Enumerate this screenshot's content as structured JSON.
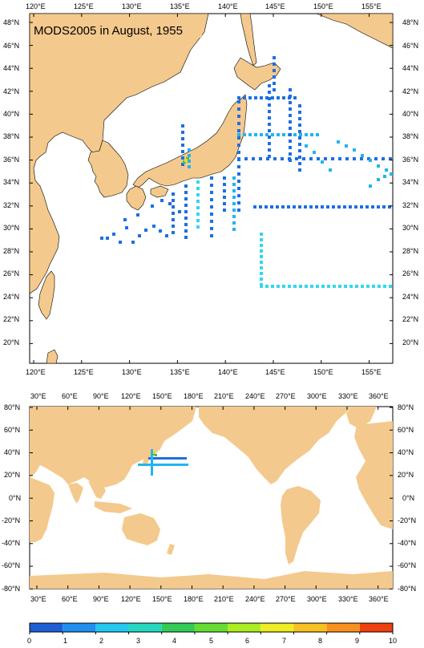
{
  "title": "MODS2005 in August, 1955",
  "map1": {
    "lon_labels": [
      "120°E",
      "125°E",
      "130°E",
      "135°E",
      "140°E",
      "145°E",
      "150°E",
      "155°E"
    ],
    "lat_labels": [
      "48°N",
      "46°N",
      "44°N",
      "42°N",
      "40°N",
      "38°N",
      "36°N",
      "34°N",
      "32°N",
      "30°N",
      "28°N",
      "26°N",
      "24°N",
      "22°N",
      "20°N"
    ]
  },
  "map2": {
    "lon_labels": [
      "30°E",
      "60°E",
      "90°E",
      "120°E",
      "150°E",
      "180°E",
      "210°E",
      "240°E",
      "270°E",
      "300°E",
      "330°E",
      "360°E"
    ],
    "lat_labels": [
      "80°N",
      "60°N",
      "40°N",
      "20°N",
      "0°N",
      "-20°N",
      "-40°N",
      "-60°N",
      "-80°N"
    ]
  },
  "colorbar": {
    "labels": [
      "0",
      "1",
      "2",
      "3",
      "4",
      "5",
      "6",
      "7",
      "8",
      "9",
      "10"
    ],
    "colors": [
      "#1f5fd6",
      "#1f8ff0",
      "#22c8f0",
      "#25d8c0",
      "#33cc55",
      "#66dd33",
      "#aaee22",
      "#eeee22",
      "#f8c020",
      "#f89020",
      "#f04010"
    ]
  },
  "station_colors": {
    "dark_blue": "#1f6fe0",
    "light_blue": "#22b4f0",
    "cyan": "#33d6f0",
    "green": "#44c050",
    "yellow": "#eedd22"
  }
}
